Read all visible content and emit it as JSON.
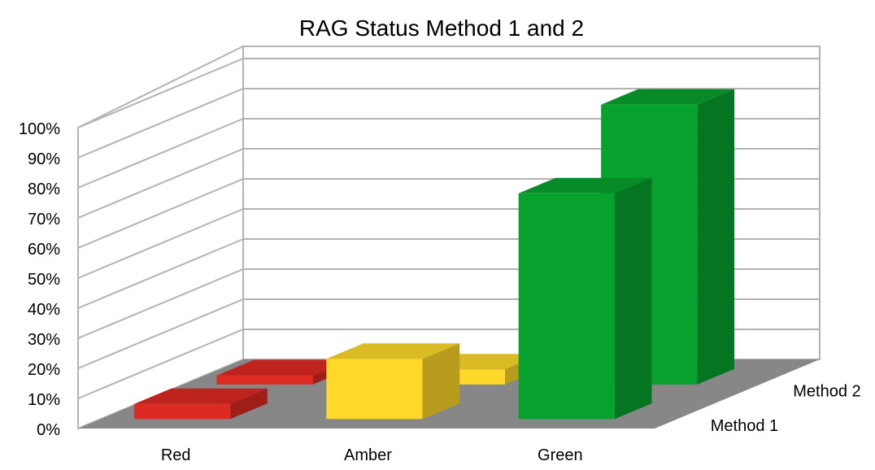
{
  "chart_data": {
    "type": "bar",
    "title": "RAG Status Method 1 and 2",
    "categories": [
      "Red",
      "Amber",
      "Green"
    ],
    "series": [
      {
        "name": "Method 1",
        "values": [
          0.05,
          0.2,
          0.75
        ]
      },
      {
        "name": "Method 2",
        "values": [
          0.03,
          0.05,
          0.93
        ]
      }
    ],
    "ylim": [
      0,
      1
    ],
    "y_ticks": [
      "0%",
      "10%",
      "20%",
      "30%",
      "40%",
      "50%",
      "60%",
      "70%",
      "80%",
      "90%",
      "100%"
    ],
    "grid": true,
    "three_d": true,
    "colors": {
      "Red": "#dd2a22",
      "Amber": "#ffd92a",
      "Green": "#07a22e",
      "floor": "#878787",
      "grid": "#b3b3b3",
      "axis": "#b3b3b3"
    }
  }
}
